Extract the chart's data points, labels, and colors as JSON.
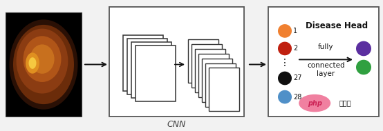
{
  "bg_color": "#f2f2f2",
  "box_bg": "#ffffff",
  "box_edge": "#555555",
  "arrow_color": "#111111",
  "cnn_label": "CNN",
  "eye_bg": "#000000",
  "eye_colors": [
    "#2A1005",
    "#7B3A10",
    "#A04A15",
    "#C06820",
    "#E09825",
    "#F5C840"
  ],
  "circles_left": [
    {
      "color": "#F08030",
      "label": "1",
      "ny": 0.78
    },
    {
      "color": "#C02010",
      "label": "2",
      "ny": 0.62
    },
    {
      "color": "#101010",
      "label": "27",
      "ny": 0.35
    },
    {
      "color": "#5090C8",
      "label": "28",
      "ny": 0.18
    }
  ],
  "dots_ny": 0.49,
  "circles_right": [
    {
      "color": "#5B2FA0",
      "ny": 0.62
    },
    {
      "color": "#30A040",
      "ny": 0.45
    }
  ],
  "disease_head_text": "Disease Head",
  "fc_text_line1": "fully",
  "fc_text_line2": "connected",
  "fc_text_line3": "layer",
  "php_color": "#F080A0",
  "php_text_color": "#CC2255"
}
